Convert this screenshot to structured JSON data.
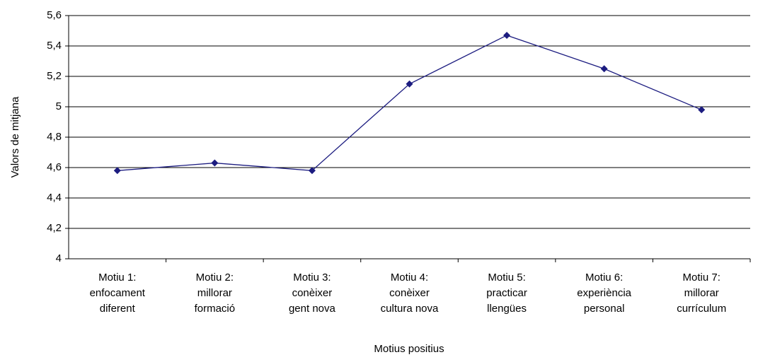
{
  "chart_data": {
    "type": "line",
    "x_label": "Motius positius",
    "y_label": "Valors de mitjana",
    "categories": [
      "Motiu 1:\nenfocament\ndiferent",
      "Motiu 2:\nmillorar\nformació",
      "Motiu 3:\nconèixer\ngent nova",
      "Motiu 4:\nconèixer\ncultura nova",
      "Motiu 5:\npracticar\nllengües",
      "Motiu 6:\nexperiència\npersonal",
      "Motiu 7:\nmillorar\ncurrículum"
    ],
    "series": [
      {
        "name": "Valors de mitjana",
        "color": "#1c1c80",
        "values": [
          4.58,
          4.63,
          4.58,
          5.15,
          5.47,
          5.25,
          4.98
        ]
      }
    ],
    "ylim": [
      4,
      5.6
    ],
    "yticks": [
      4,
      {
        "value": 4.2,
        "label": "4,2"
      },
      {
        "value": 4.4,
        "label": "4,4"
      },
      {
        "value": 4.6,
        "label": "4,6"
      },
      {
        "value": 4.8,
        "label": "4,8"
      },
      5,
      {
        "value": 5.2,
        "label": "5,2"
      },
      {
        "value": 5.4,
        "label": "5,4"
      },
      {
        "value": 5.6,
        "label": "5,6"
      }
    ],
    "grid": true
  }
}
